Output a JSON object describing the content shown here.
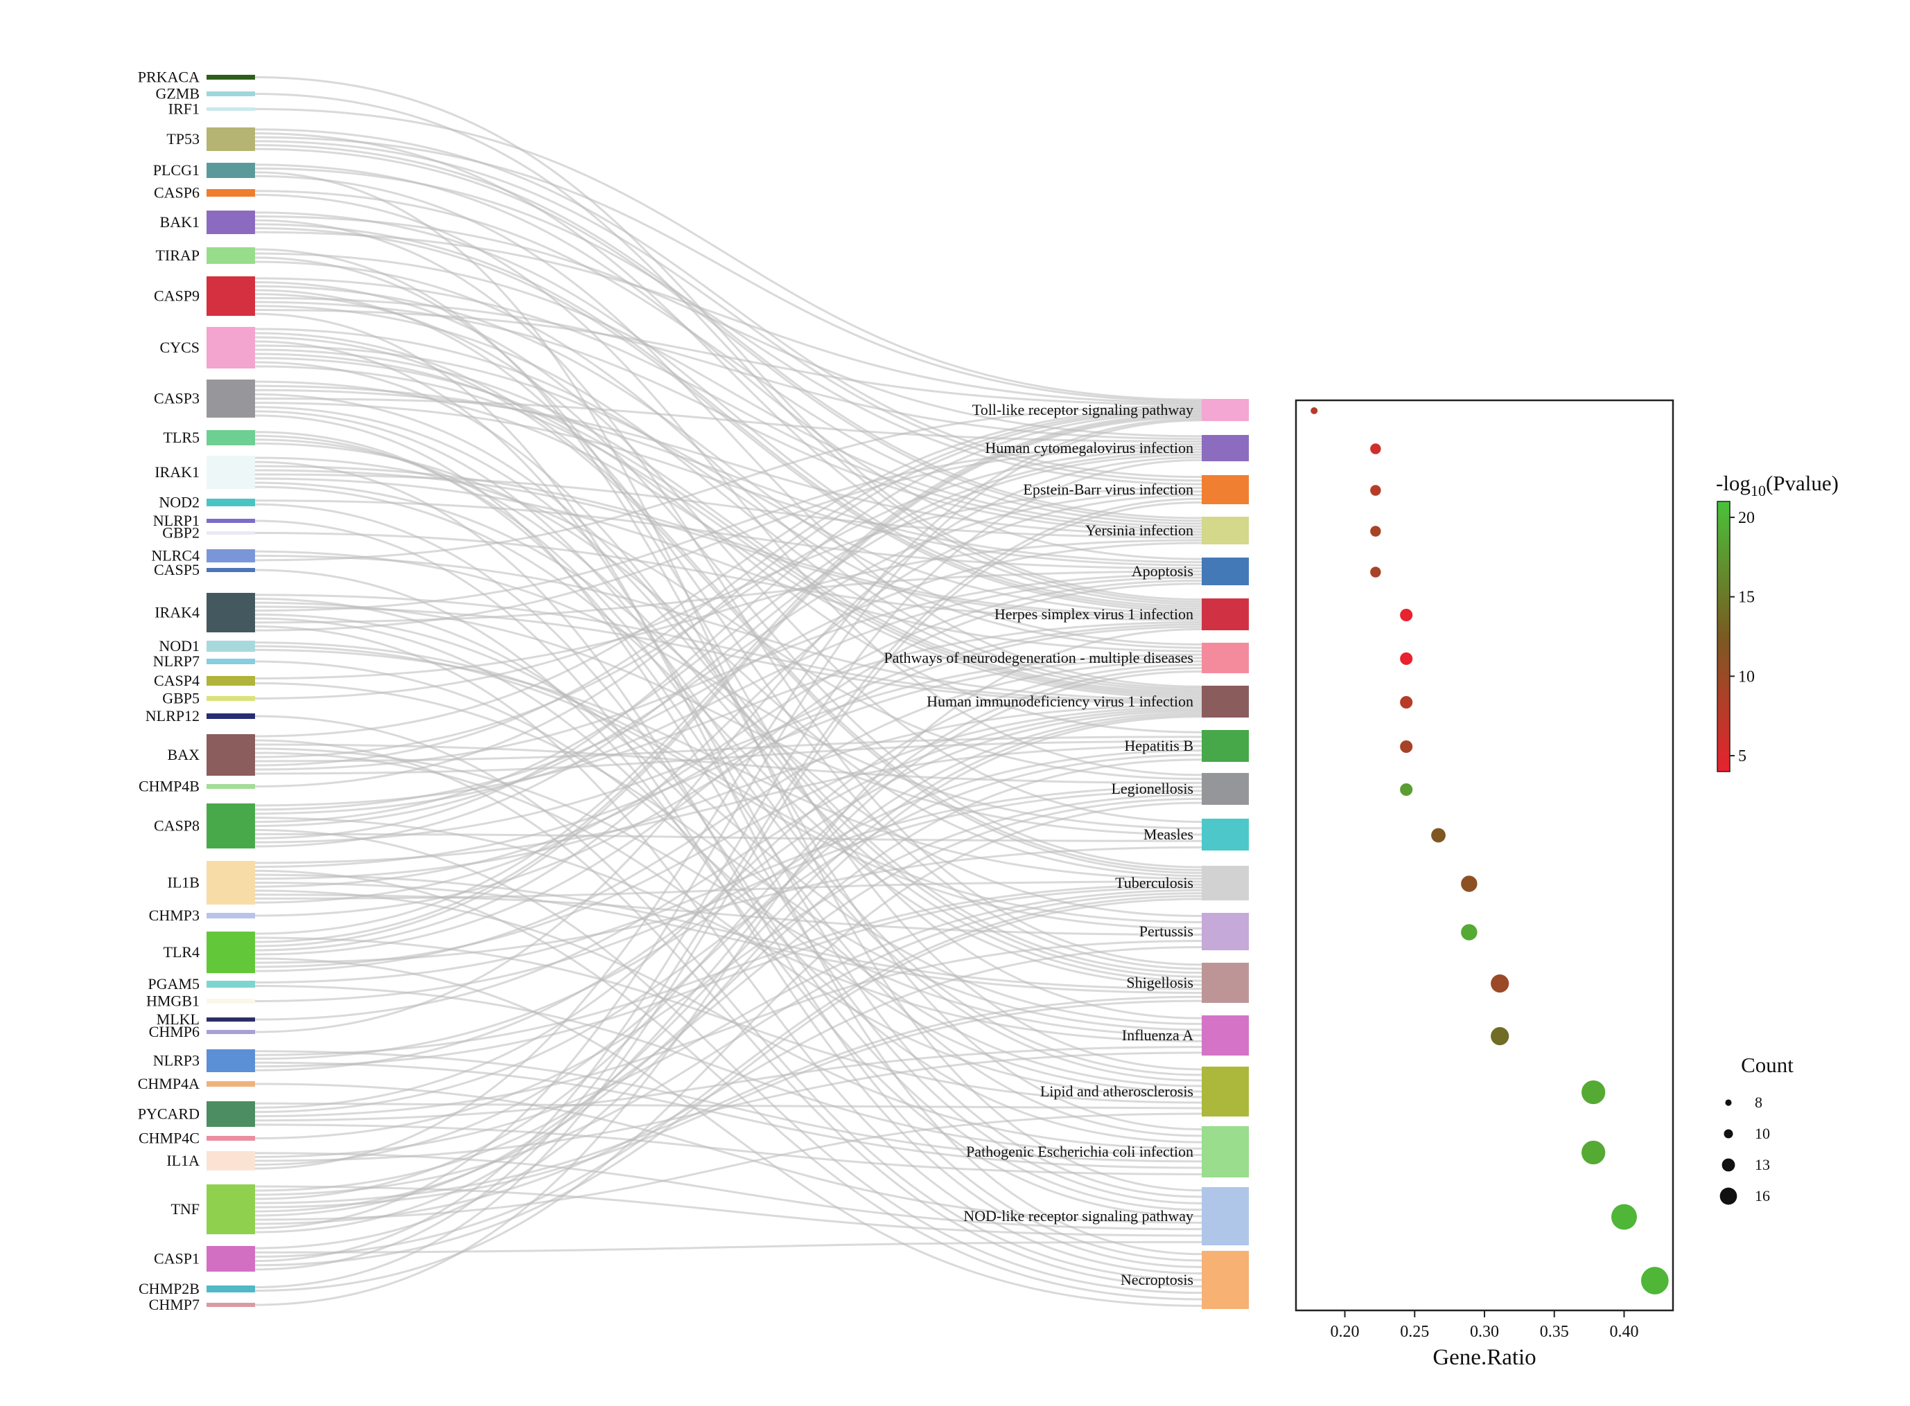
{
  "chart_data": [
    {
      "type": "sankey",
      "genes": [
        {
          "name": "PRKACA",
          "color": "#2e5e1c"
        },
        {
          "name": "GZMB",
          "color": "#9fd6dc"
        },
        {
          "name": "IRF1",
          "color": "#c9e9ec"
        },
        {
          "name": "TP53",
          "color": "#b5b472"
        },
        {
          "name": "PLCG1",
          "color": "#5b9a9a"
        },
        {
          "name": "CASP6",
          "color": "#ef7d2f"
        },
        {
          "name": "BAK1",
          "color": "#8a6bbf"
        },
        {
          "name": "TIRAP",
          "color": "#98dd8a"
        },
        {
          "name": "CASP9",
          "color": "#d43040"
        },
        {
          "name": "CYCS",
          "color": "#f3a4cf"
        },
        {
          "name": "CASP3",
          "color": "#97979b"
        },
        {
          "name": "TLR5",
          "color": "#6dcf92"
        },
        {
          "name": "IRAK1",
          "color": "#edf7f8"
        },
        {
          "name": "NOD2",
          "color": "#49c4c4"
        },
        {
          "name": "NLRP1",
          "color": "#7d6bc9"
        },
        {
          "name": "GBP2",
          "color": "#eaeaf3"
        },
        {
          "name": "NLRC4",
          "color": "#7b96d8"
        },
        {
          "name": "CASP5",
          "color": "#4a76b8"
        },
        {
          "name": "IRAK4",
          "color": "#44585f"
        },
        {
          "name": "NOD1",
          "color": "#a7d9dc"
        },
        {
          "name": "NLRP7",
          "color": "#86cde0"
        },
        {
          "name": "CASP4",
          "color": "#b0b43a"
        },
        {
          "name": "GBP5",
          "color": "#d9e27a"
        },
        {
          "name": "NLRP12",
          "color": "#252d73"
        },
        {
          "name": "BAX",
          "color": "#8b5d5c"
        },
        {
          "name": "CHMP4B",
          "color": "#a4dc98"
        },
        {
          "name": "CASP8",
          "color": "#48a94a"
        },
        {
          "name": "IL1B",
          "color": "#f8dca7"
        },
        {
          "name": "CHMP3",
          "color": "#b7c3e8"
        },
        {
          "name": "TLR4",
          "color": "#63c73a"
        },
        {
          "name": "PGAM5",
          "color": "#7dd5d0"
        },
        {
          "name": "HMGB1",
          "color": "#fbf6ea"
        },
        {
          "name": "MLKL",
          "color": "#2b2f66"
        },
        {
          "name": "CHMP6",
          "color": "#a8a0d4"
        },
        {
          "name": "NLRP3",
          "color": "#5b8fd6"
        },
        {
          "name": "CHMP4A",
          "color": "#f0b27c"
        },
        {
          "name": "PYCARD",
          "color": "#4c8d61"
        },
        {
          "name": "CHMP4C",
          "color": "#ea8ea0"
        },
        {
          "name": "IL1A",
          "color": "#fbe3d3"
        },
        {
          "name": "TNF",
          "color": "#8fd14f"
        },
        {
          "name": "CASP1",
          "color": "#d26fc2"
        },
        {
          "name": "CHMP2B",
          "color": "#4fb9c6"
        },
        {
          "name": "CHMP7",
          "color": "#d99aa3"
        }
      ],
      "pathways": [
        {
          "name": "Toll-like receptor signaling pathway",
          "color": "#f3a7d2"
        },
        {
          "name": "Human cytomegalovirus infection",
          "color": "#8c6cbf"
        },
        {
          "name": "Epstein-Barr virus infection",
          "color": "#f17f31"
        },
        {
          "name": "Yersinia infection",
          "color": "#d3d88a"
        },
        {
          "name": "Apoptosis",
          "color": "#4479b7"
        },
        {
          "name": "Herpes simplex virus 1 infection",
          "color": "#d13243"
        },
        {
          "name": "Pathways of neurodegeneration - multiple diseases",
          "color": "#f48b9c"
        },
        {
          "name": "Human immunodeficiency virus 1 infection",
          "color": "#8a5d5c"
        },
        {
          "name": "Hepatitis B",
          "color": "#47a84a"
        },
        {
          "name": "Legionellosis",
          "color": "#95969a"
        },
        {
          "name": "Measles",
          "color": "#4dc7c9"
        },
        {
          "name": "Tuberculosis",
          "color": "#d2d2d2"
        },
        {
          "name": "Pertussis",
          "color": "#c5a9d8"
        },
        {
          "name": "Shigellosis",
          "color": "#be9596"
        },
        {
          "name": "Influenza A",
          "color": "#d573c6"
        },
        {
          "name": "Lipid and atherosclerosis",
          "color": "#abb83b"
        },
        {
          "name": "Pathogenic Escherichia coli infection",
          "color": "#99dd8d"
        },
        {
          "name": "NOD-like receptor signaling pathway",
          "color": "#afc6e9"
        },
        {
          "name": "Necroptosis",
          "color": "#f6b173"
        }
      ]
    },
    {
      "type": "scatter",
      "xlabel": "Gene.Ratio",
      "xticks": [
        "0.20",
        "0.25",
        "0.30",
        "0.35",
        "0.40"
      ],
      "xlim": [
        0.165,
        0.435
      ],
      "points": [
        {
          "pathway": "Toll-like receptor signaling pathway",
          "x": 0.178,
          "p": 8,
          "count": 7
        },
        {
          "pathway": "Human cytomegalovirus infection",
          "x": 0.222,
          "p": 6,
          "count": 9
        },
        {
          "pathway": "Epstein-Barr virus infection",
          "x": 0.222,
          "p": 8,
          "count": 9
        },
        {
          "pathway": "Yersinia infection",
          "x": 0.222,
          "p": 9,
          "count": 9
        },
        {
          "pathway": "Apoptosis",
          "x": 0.222,
          "p": 9,
          "count": 9
        },
        {
          "pathway": "Herpes simplex virus 1 infection",
          "x": 0.244,
          "p": 4,
          "count": 10
        },
        {
          "pathway": "Pathways of neurodegeneration - multiple diseases",
          "x": 0.244,
          "p": 4,
          "count": 10
        },
        {
          "pathway": "Human immunodeficiency virus 1 infection",
          "x": 0.244,
          "p": 8,
          "count": 10
        },
        {
          "pathway": "Hepatitis B",
          "x": 0.244,
          "p": 9,
          "count": 10
        },
        {
          "pathway": "Legionellosis",
          "x": 0.244,
          "p": 18,
          "count": 10
        },
        {
          "pathway": "Measles",
          "x": 0.267,
          "p": 12,
          "count": 11
        },
        {
          "pathway": "Tuberculosis",
          "x": 0.289,
          "p": 11,
          "count": 12
        },
        {
          "pathway": "Pertussis",
          "x": 0.289,
          "p": 19,
          "count": 12
        },
        {
          "pathway": "Shigellosis",
          "x": 0.311,
          "p": 10,
          "count": 13
        },
        {
          "pathway": "Influenza A",
          "x": 0.311,
          "p": 14,
          "count": 13
        },
        {
          "pathway": "Lipid and atherosclerosis",
          "x": 0.378,
          "p": 19,
          "count": 16
        },
        {
          "pathway": "Pathogenic Escherichia coli infection",
          "x": 0.378,
          "p": 19,
          "count": 16
        },
        {
          "pathway": "NOD-like receptor signaling pathway",
          "x": 0.4,
          "p": 20,
          "count": 17
        },
        {
          "pathway": "Necroptosis",
          "x": 0.422,
          "p": 20,
          "count": 18
        }
      ],
      "colorbar": {
        "ticks": [
          "20",
          "15",
          "10",
          "5"
        ],
        "range": [
          4,
          21
        ],
        "low_color": "#e8222e",
        "mid_color": "#7a5a22",
        "high_color": "#49c23a"
      },
      "size_legend": {
        "title": "Count",
        "values": [
          "8",
          "10",
          "13",
          "16"
        ]
      }
    }
  ]
}
